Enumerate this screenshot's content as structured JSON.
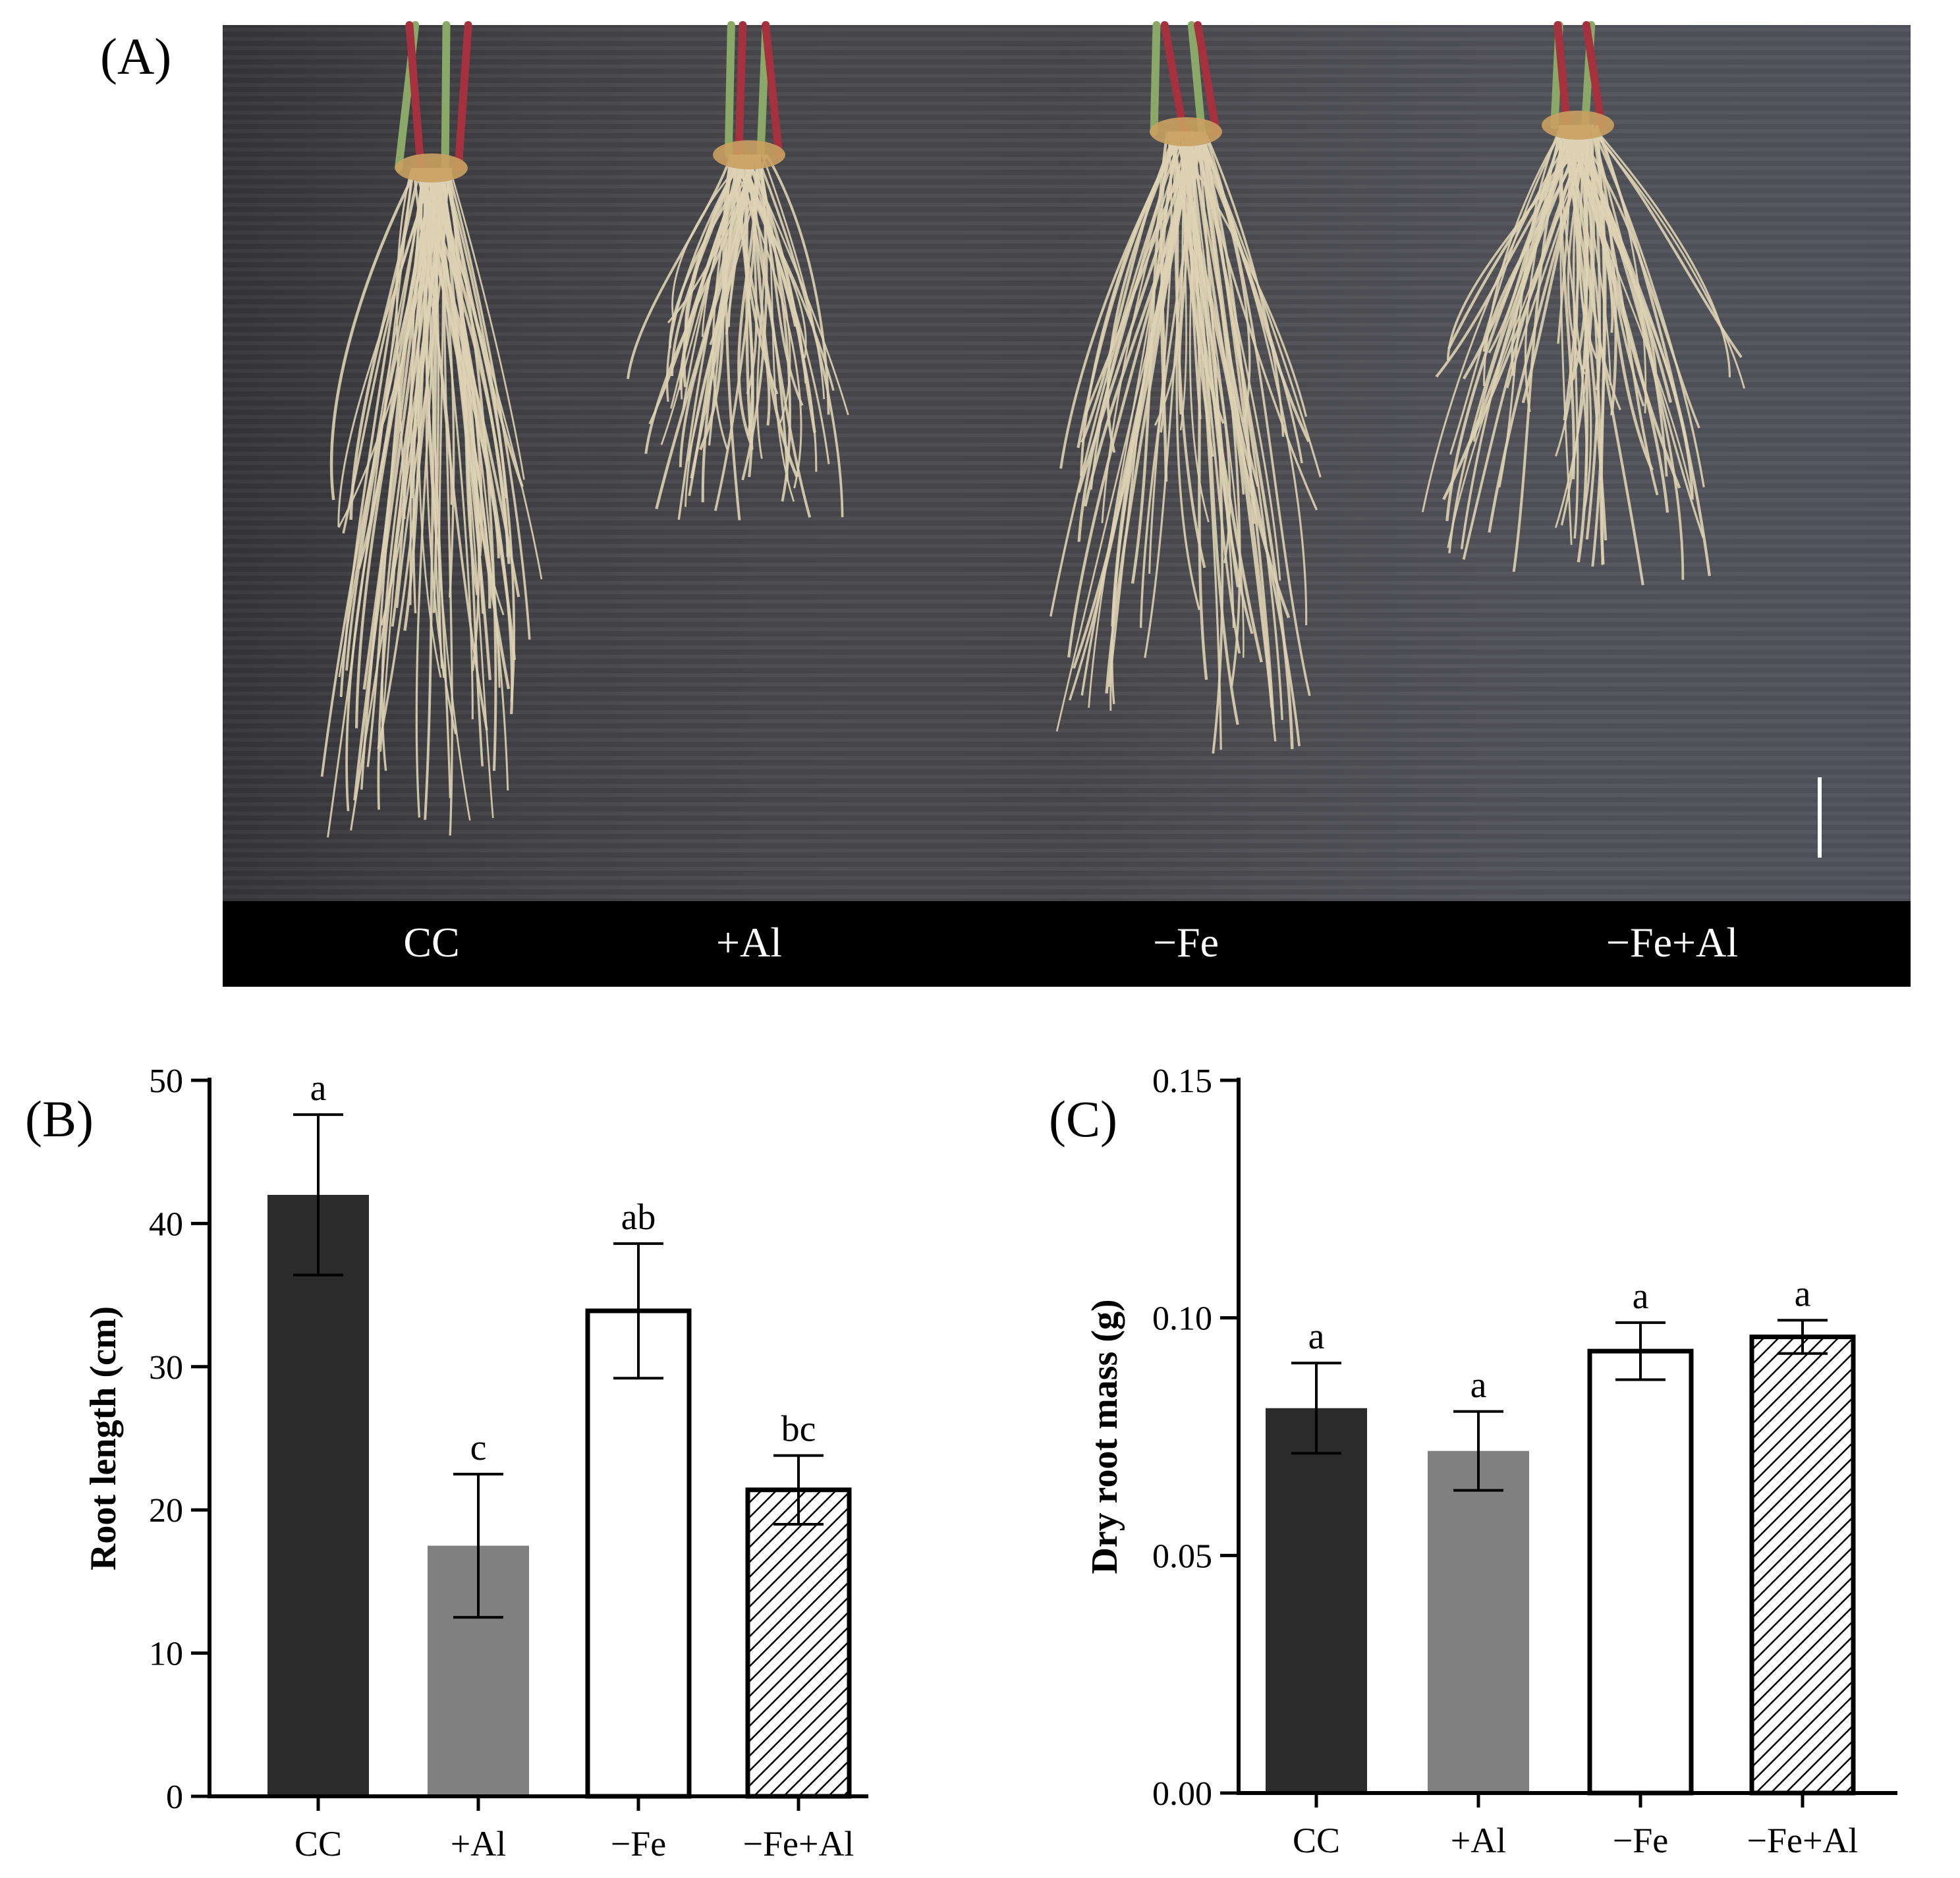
{
  "panel_a": {
    "label": "(A)",
    "treatments": [
      "CC",
      "+Al",
      "−Fe",
      "−Fe+Al"
    ]
  },
  "colors": {
    "cc": "#2b2b2b",
    "al": "#808080",
    "fe": "#ffffff",
    "fe_al_hatch": "#000000",
    "photo_background": "#3f3f44",
    "root": "#ddd2b4",
    "stem_red": "#a5313f"
  },
  "chart_data": [
    {
      "type": "bar",
      "panel_label": "(B)",
      "categories": [
        "CC",
        "+Al",
        "−Fe",
        "−Fe+Al"
      ],
      "values": [
        42.0,
        17.5,
        33.9,
        21.4
      ],
      "errors": [
        5.6,
        5.0,
        4.7,
        2.4
      ],
      "significance": [
        "a",
        "c",
        "ab",
        "bc"
      ],
      "ylabel": "Root length (cm)",
      "ylim": [
        0,
        50
      ],
      "yticks": [
        "0",
        "10",
        "20",
        "30",
        "40",
        "50"
      ],
      "fills": [
        "solid-dark",
        "solid-gray",
        "open",
        "hatched"
      ],
      "grid": false,
      "legend": "none"
    },
    {
      "type": "bar",
      "panel_label": "(C)",
      "categories": [
        "CC",
        "+Al",
        "−Fe",
        "−Fe+Al"
      ],
      "values": [
        0.081,
        0.072,
        0.093,
        0.096
      ],
      "errors": [
        0.0095,
        0.0083,
        0.006,
        0.0035
      ],
      "significance": [
        "a",
        "a",
        "a",
        "a"
      ],
      "ylabel": "Dry root mass (g)",
      "ylim": [
        0,
        0.15
      ],
      "yticks": [
        "0.00",
        "0.05",
        "0.10",
        "0.15"
      ],
      "fills": [
        "solid-dark",
        "solid-gray",
        "open",
        "hatched"
      ],
      "grid": false,
      "legend": "none"
    }
  ]
}
